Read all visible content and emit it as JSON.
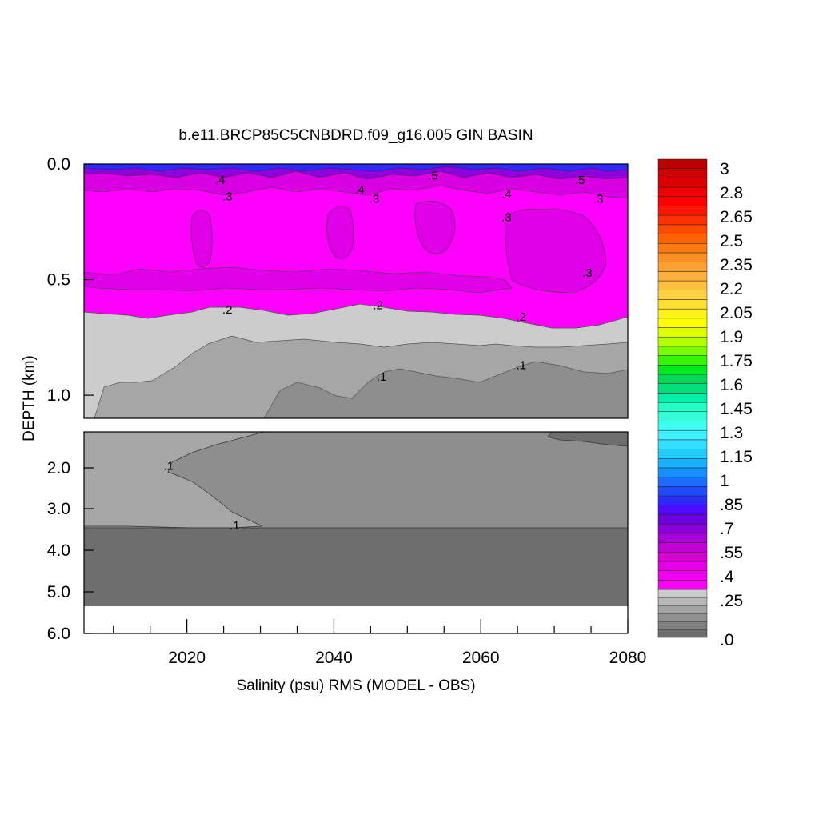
{
  "chart_data": {
    "type": "heatmap",
    "title": "b.e11.BRCP85C5CNBDRD.f09_g16.005 GIN BASIN",
    "xlabel": "Salinity (psu) RMS (MODEL - OBS)",
    "ylabel": "DEPTH (km)",
    "xlim": [
      2006,
      2080
    ],
    "x_ticks": [
      "2020",
      "2040",
      "2060",
      "2080"
    ],
    "panels": [
      {
        "name": "upper",
        "ylim": [
          0.0,
          1.1
        ],
        "y_ticks": [
          "0.0",
          "0.5",
          "1.0"
        ]
      },
      {
        "name": "lower",
        "ylim": [
          1.1,
          6.0
        ],
        "y_ticks": [
          "2.0",
          "3.0",
          "4.0",
          "5.0",
          "6.0"
        ]
      }
    ],
    "contour_labels": [
      {
        "text": ".4",
        "year": 2024.5,
        "depth": 0.07
      },
      {
        "text": ".3",
        "year": 2025.5,
        "depth": 0.14
      },
      {
        "text": ".4",
        "year": 2043.5,
        "depth": 0.11
      },
      {
        "text": ".3",
        "year": 2045.5,
        "depth": 0.15
      },
      {
        "text": ".5",
        "year": 2053.5,
        "depth": 0.05
      },
      {
        "text": ".4",
        "year": 2063.5,
        "depth": 0.13
      },
      {
        "text": ".3",
        "year": 2063.5,
        "depth": 0.23
      },
      {
        "text": ".5",
        "year": 2073.5,
        "depth": 0.07
      },
      {
        "text": ".3",
        "year": 2076.0,
        "depth": 0.15
      },
      {
        "text": ".3",
        "year": 2074.5,
        "depth": 0.47
      },
      {
        "text": ".2",
        "year": 2025.5,
        "depth": 0.63
      },
      {
        "text": ".2",
        "year": 2046.0,
        "depth": 0.61
      },
      {
        "text": ".2",
        "year": 2065.5,
        "depth": 0.66
      },
      {
        "text": ".1",
        "year": 2046.5,
        "depth": 0.92
      },
      {
        "text": ".1",
        "year": 2065.5,
        "depth": 0.87
      },
      {
        "text": ".1",
        "year": 2017.5,
        "depth": 1.95
      },
      {
        "text": ".1",
        "year": 2026.5,
        "depth": 3.4
      }
    ],
    "colorbar": {
      "labels": [
        ".0",
        ".25",
        ".4",
        ".55",
        ".7",
        ".85",
        "1",
        "1.15",
        "1.3",
        "1.45",
        "1.6",
        "1.75",
        "1.9",
        "2.05",
        "2.2",
        "2.35",
        "2.5",
        "2.65",
        "2.8",
        "3"
      ],
      "greys": [
        "#6e6e6e",
        "#808080",
        "#909090",
        "#a4a4a4",
        "#b8b8b8",
        "#cccccc"
      ],
      "colors": [
        "#ff00ff",
        "#f300f3",
        "#e600e6",
        "#d600d6",
        "#c300d3",
        "#a600d6",
        "#8a00dc",
        "#6e00e0",
        "#4d0cff",
        "#2b2bff",
        "#1f4bff",
        "#1a6dff",
        "#1690ff",
        "#19b0ff",
        "#22ccff",
        "#33e0ff",
        "#3ff0ff",
        "#3ffff0",
        "#35ffd9",
        "#20ffc3",
        "#00f0a8",
        "#00e07d",
        "#00d955",
        "#00e81e",
        "#35f500",
        "#7cff00",
        "#b6ff00",
        "#e0ff00",
        "#ffff00",
        "#fff31a",
        "#ffe030",
        "#ffd040",
        "#ffc040",
        "#ffb03a",
        "#ffa030",
        "#ff9020",
        "#ff7a10",
        "#ff6200",
        "#ff4a00",
        "#ff3000",
        "#ff1500",
        "#ff0000",
        "#ee0000",
        "#dd0000",
        "#cc0000",
        "#bb0000"
      ]
    },
    "fill": {
      "magenta": "#ff00ff",
      "purple": "#e000e8",
      "light_grey": "#cccccc",
      "mid_grey": "#a6a6a6",
      "grey": "#8e8e8e",
      "dark_grey": "#6e6e6e"
    }
  }
}
